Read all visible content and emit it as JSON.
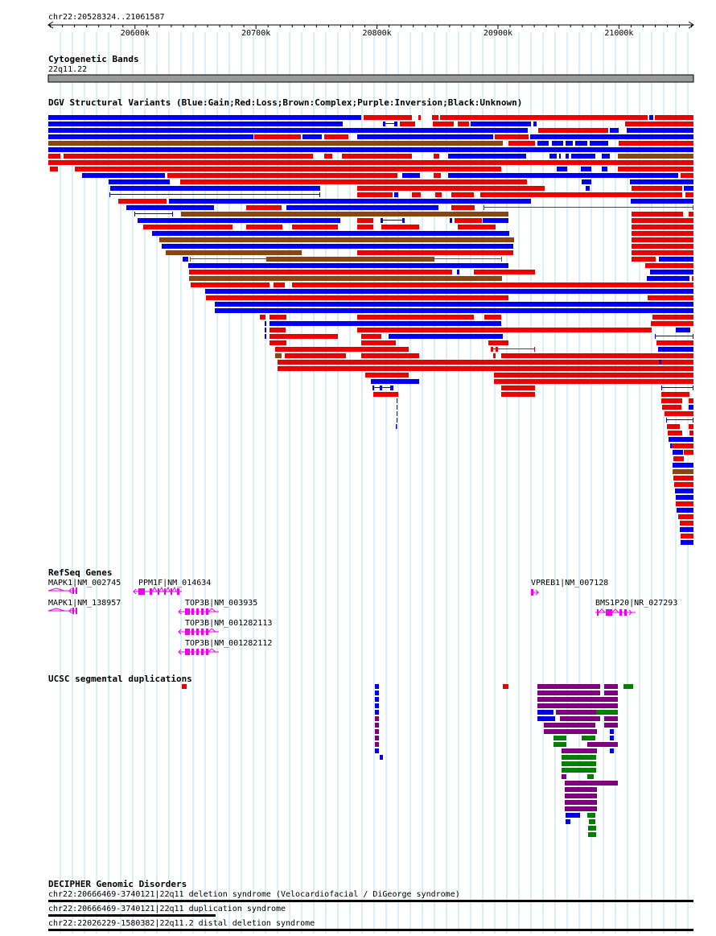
{
  "ruler": {
    "position_label": "chr22:20528324..21061587",
    "start": 20528324,
    "end": 21061587,
    "ticks": [
      {
        "pos": 20600000,
        "label": "20600k"
      },
      {
        "pos": 20700000,
        "label": "20700k"
      },
      {
        "pos": 20800000,
        "label": "20800k"
      },
      {
        "pos": 20900000,
        "label": "20900k"
      },
      {
        "pos": 21000000,
        "label": "21000k"
      }
    ]
  },
  "tracks": {
    "cytoband": {
      "title": "Cytogenetic Bands",
      "band": "22q11.22",
      "color": "#999999"
    },
    "dgv": {
      "title": "DGV Structural Variants (Blue:Gain;Red:Loss;Brown:Complex;Purple:Inversion;Black:Unknown)",
      "colors": {
        "gain": "#0000ee",
        "loss": "#ee0000",
        "complex": "#8b4513",
        "inversion": "#800080",
        "unknown": "#000000"
      }
    },
    "refseq": {
      "title": "RefSeq Genes",
      "color": "#ee00ee",
      "genes": [
        {
          "label": "MAPK1|NM_002745"
        },
        {
          "label": "PPM1F|NM_014634"
        },
        {
          "label": "VPREB1|NM_007128"
        },
        {
          "label": "MAPK1|NM_138957"
        },
        {
          "label": "TOP3B|NM_003935"
        },
        {
          "label": "BMS1P20|NR_027293"
        },
        {
          "label": "TOP3B|NM_001282113"
        },
        {
          "label": "TOP3B|NM_001282112"
        }
      ]
    },
    "segdups": {
      "title": "UCSC segmental duplications",
      "colors": {
        "red": "#ee0000",
        "blue": "#0000ee",
        "purple": "#800080",
        "green": "#008000"
      }
    },
    "decipher": {
      "title": "DECIPHER Genomic Disorders",
      "items": [
        {
          "label": "chr22:20666469-3740121|22q11 deletion syndrome (Velocardiofacial / DiGeorge syndrome)"
        },
        {
          "label": "chr22:20666469-3740121|22q11 duplication syndrome"
        },
        {
          "label": "chr22:22026229-1580382|22q11.2 distal deletion syndrome"
        }
      ]
    }
  }
}
